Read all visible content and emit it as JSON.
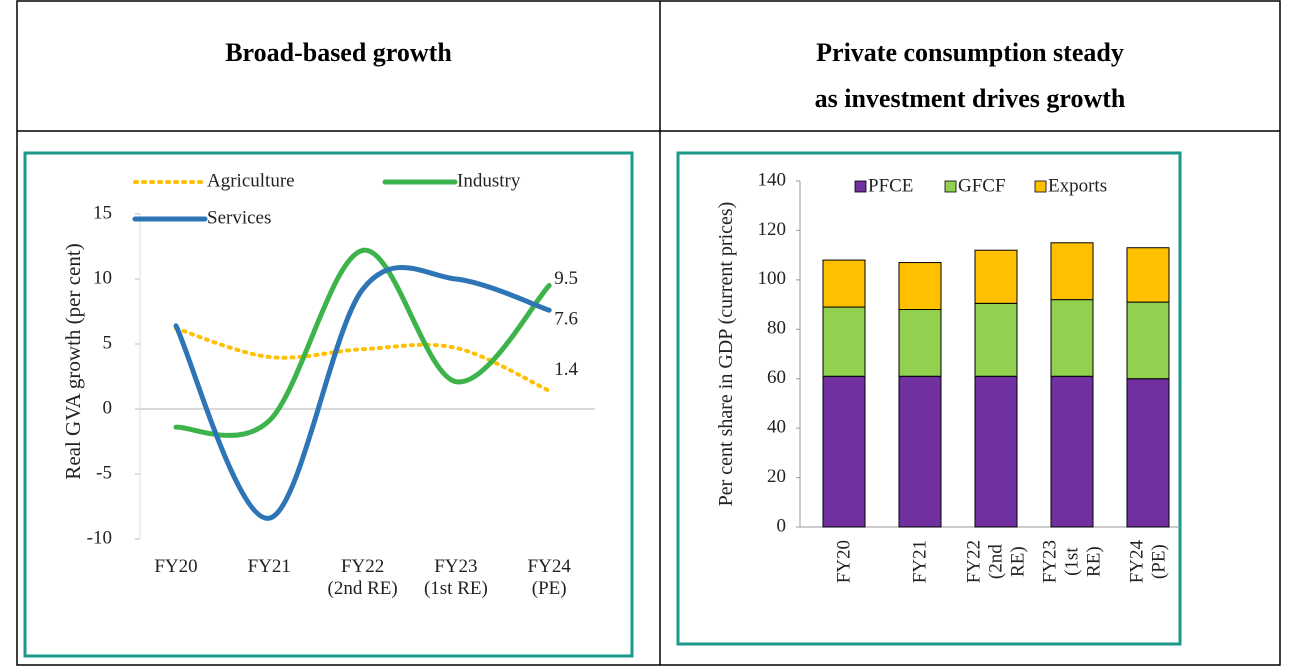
{
  "chart_data": [
    {
      "type": "line",
      "title": "Broad-based growth",
      "ylabel": "Real GVA growth (per cent)",
      "categories": [
        "FY20",
        "FY21",
        "FY22\n(2nd RE)",
        "FY23\n(1st RE)",
        "FY24\n(PE)"
      ],
      "series": [
        {
          "name": "Agriculture",
          "color": "#ffc000",
          "dash": true,
          "values": [
            6.2,
            4.0,
            4.6,
            4.7,
            1.4
          ]
        },
        {
          "name": "Industry",
          "color": "#3cb44b",
          "values": [
            -1.4,
            -0.9,
            12.2,
            2.1,
            9.5
          ]
        },
        {
          "name": "Services",
          "color": "#2e75b6",
          "values": [
            6.4,
            -8.4,
            9.2,
            10.0,
            7.6
          ]
        }
      ],
      "ylim": [
        -10,
        15
      ],
      "yticks": [
        -10,
        -5,
        0,
        5,
        10,
        15
      ],
      "grid": false
    },
    {
      "type": "stacked_bar",
      "title": "Private consumption steady\nas investment drives growth",
      "ylabel": "Per cent share in GDP (current prices)",
      "categories": [
        "FY20",
        "FY21",
        "FY22\n(2nd RE)",
        "FY23\n(1st RE)",
        "FY24\n(PE)"
      ],
      "series": [
        {
          "name": "PFCE",
          "color": "#7030a0",
          "values": [
            61,
            61,
            61,
            61,
            60
          ]
        },
        {
          "name": "GFCF",
          "color": "#92d050",
          "values": [
            28,
            27,
            29.5,
            31,
            31
          ]
        },
        {
          "name": "Exports",
          "color": "#ffc000",
          "values": [
            19,
            19,
            21.5,
            23,
            22
          ]
        }
      ],
      "ylim": [
        0,
        140
      ],
      "yticks": [
        0,
        20,
        40,
        60,
        80,
        100,
        120,
        140
      ],
      "grid": false
    }
  ]
}
